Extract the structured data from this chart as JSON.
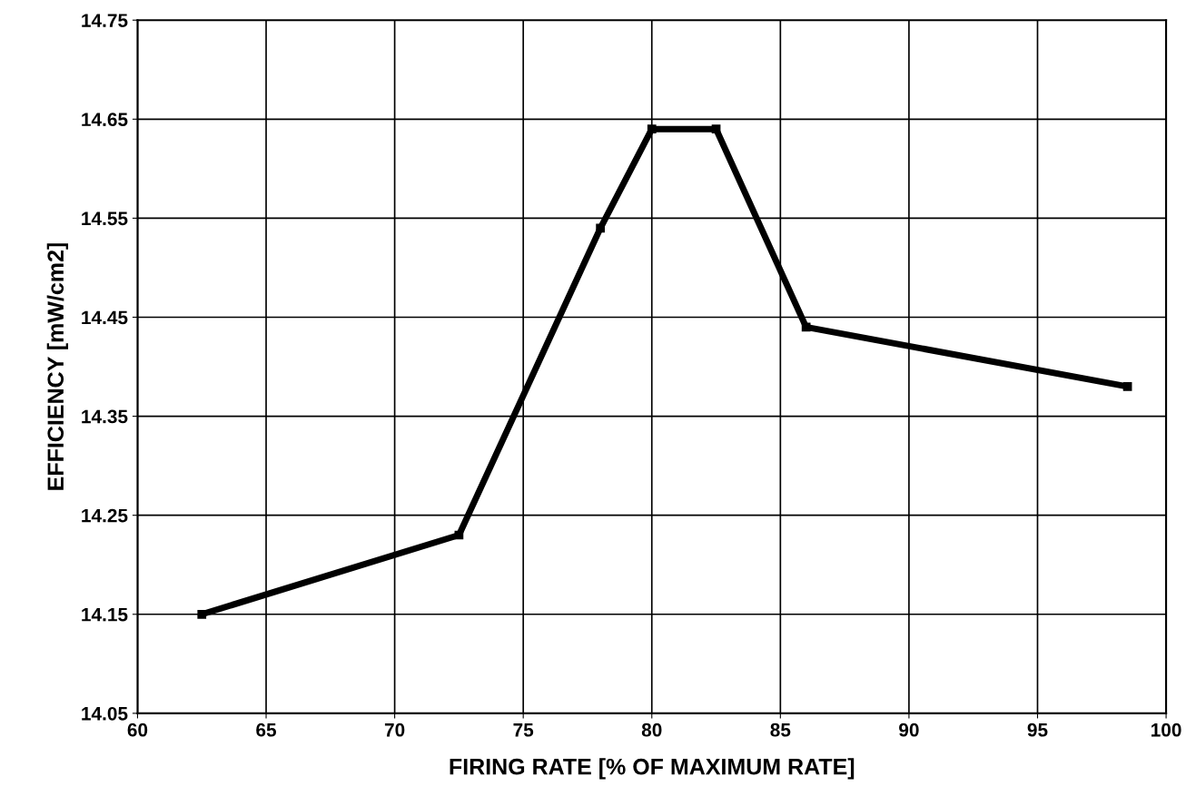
{
  "chart_data": {
    "type": "line",
    "xlabel": "FIRING RATE [% OF MAXIMUM RATE]",
    "ylabel": "EFFICIENCY [mW/cm2]",
    "x": [
      62.5,
      72.5,
      78,
      80,
      82.5,
      86,
      98.5
    ],
    "series": [
      {
        "color": "#000000",
        "values": [
          14.15,
          14.23,
          14.54,
          14.64,
          14.64,
          14.44,
          14.38
        ]
      }
    ],
    "xlim": [
      60,
      100
    ],
    "xticks": [
      60,
      65,
      70,
      75,
      80,
      85,
      90,
      95,
      100
    ],
    "ylim": [
      14.05,
      14.75
    ],
    "yticks": [
      14.05,
      14.15,
      14.25,
      14.35,
      14.45,
      14.55,
      14.65,
      14.75
    ],
    "grid": true,
    "marker": "square",
    "line_style": "solid"
  }
}
